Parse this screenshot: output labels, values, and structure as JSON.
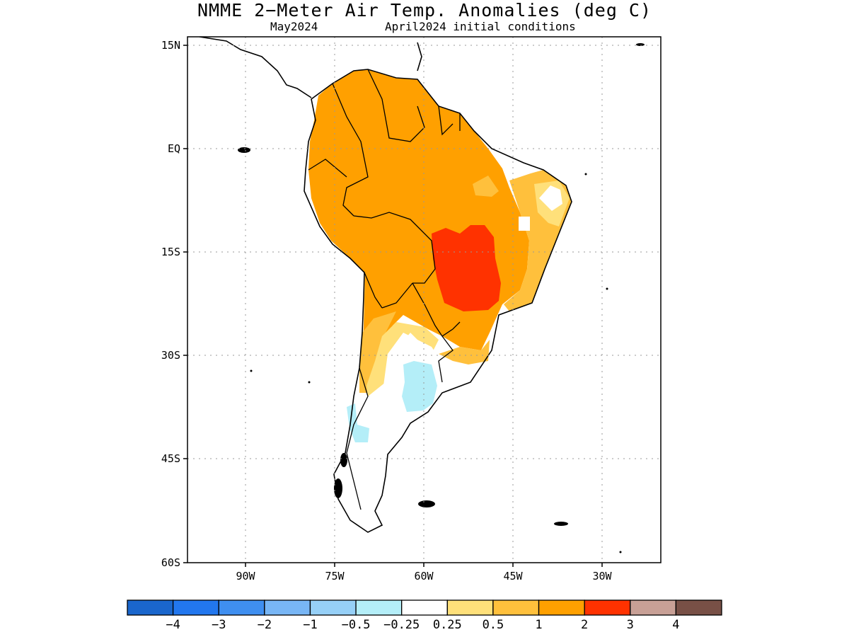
{
  "title": "NMME 2−Meter Air Temp. Anomalies (deg C)",
  "subtitle_left": "May2024",
  "subtitle_right": "April2024 initial conditions",
  "axes": {
    "lat_labels": [
      "15N",
      "EQ",
      "15S",
      "30S",
      "45S",
      "60S"
    ],
    "lon_labels": [
      "90W",
      "75W",
      "60W",
      "45W",
      "30W"
    ],
    "lat_range": [
      -60,
      15
    ],
    "lon_range": [
      -100,
      -20
    ]
  },
  "colorbar": {
    "colors": [
      "#1a66cc",
      "#2277ee",
      "#3f8ff0",
      "#78b6f5",
      "#96d0f7",
      "#b4eef8",
      "#ffffff",
      "#ffe07a",
      "#ffc03c",
      "#ffa000",
      "#ff3200",
      "#c8a096",
      "#785046"
    ],
    "labels": [
      "−4",
      "−3",
      "−2",
      "−1",
      "−0.5",
      "−0.25",
      "0.25",
      "0.5",
      "1",
      "2",
      "3",
      "4"
    ]
  },
  "chart_data": {
    "type": "heatmap",
    "title": "NMME 2−Meter Air Temp. Anomalies (deg C)",
    "subtitle": "May2024   April2024 initial conditions",
    "units": "deg C",
    "region": "South America",
    "xlim": [
      -100,
      -20
    ],
    "ylim": [
      -60,
      15
    ],
    "levels": [
      -4,
      -3,
      -2,
      -1,
      -0.5,
      -0.25,
      0.25,
      0.5,
      1,
      2,
      3,
      4
    ],
    "grid": true,
    "regions": [
      {
        "area": "Central/western Brazil (Mato Grosso)",
        "anomaly": "2 to 3"
      },
      {
        "area": "Amazon, northern South America, Bolivia, Paraguay",
        "anomaly": "1 to 2"
      },
      {
        "area": "Northeast Brazil coast",
        "anomaly": "0.25 to 1"
      },
      {
        "area": "Central Argentina",
        "anomaly": "-0.5 to -0.25"
      },
      {
        "area": "Southern Chile (Aysen)",
        "anomaly": "-0.5 to -0.25"
      },
      {
        "area": "Patagonia",
        "anomaly": "-0.25 to 0.25"
      }
    ]
  }
}
